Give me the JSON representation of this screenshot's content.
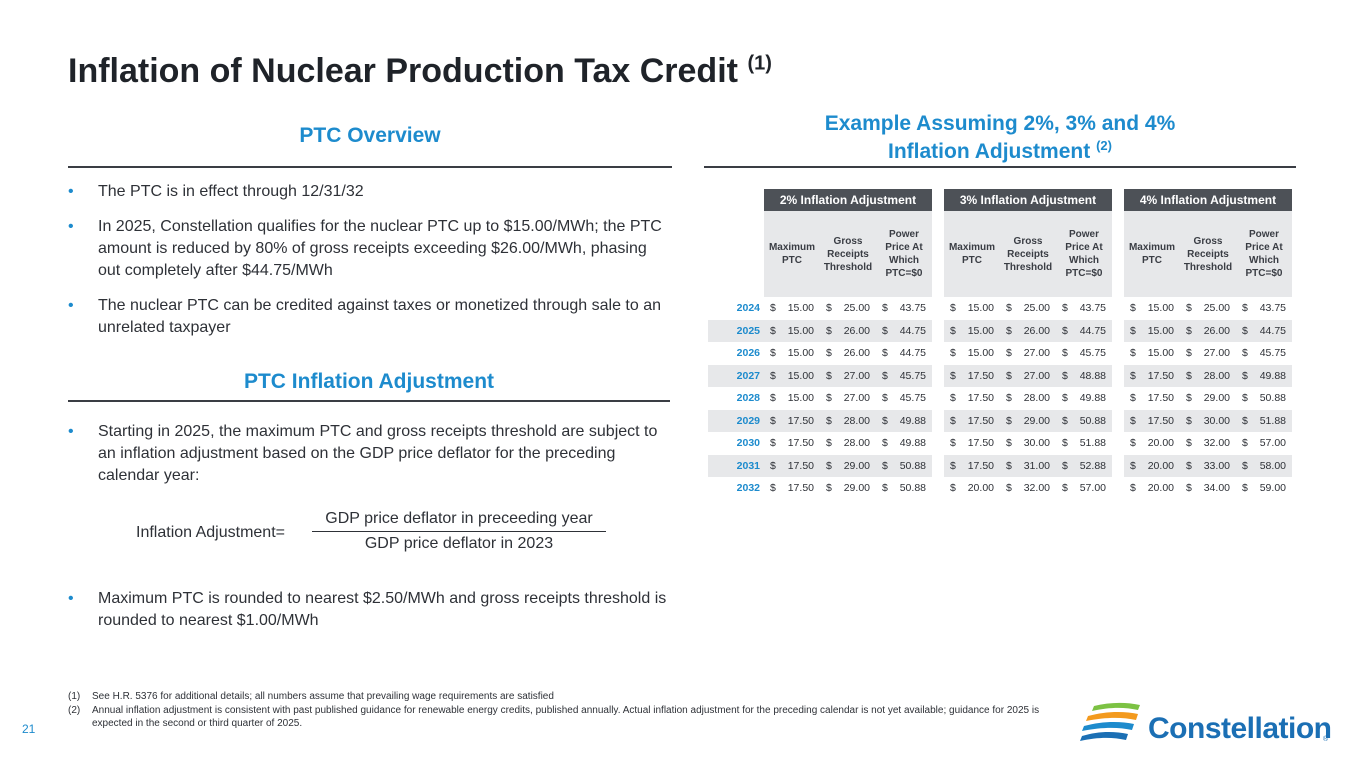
{
  "title": {
    "text": "Inflation of Nuclear Production Tax Credit",
    "sup": "(1)"
  },
  "overview": {
    "heading": "PTC Overview",
    "bullets": [
      "The PTC is in effect through 12/31/32",
      "In 2025, Constellation qualifies for the nuclear PTC up to $15.00/MWh; the PTC amount is reduced by 80% of gross receipts exceeding $26.00/MWh, phasing out completely after $44.75/MWh",
      "The nuclear PTC can be credited against taxes or monetized through sale to an unrelated taxpayer"
    ]
  },
  "inflation": {
    "heading": "PTC Inflation Adjustment",
    "bullet1": "Starting in 2025, the maximum PTC and gross receipts threshold are subject to an inflation adjustment based on the GDP price deflator for the preceding calendar year:",
    "bullet2": "Maximum PTC is rounded to nearest $2.50/MWh and gross receipts threshold is rounded to nearest $1.00/MWh",
    "equation": {
      "label": "Inflation Adjustment=",
      "numerator": "GDP price deflator in preceeding year",
      "denominator": "GDP price deflator in 2023"
    }
  },
  "example": {
    "heading_line1": "Example Assuming 2%, 3% and 4%",
    "heading_line2": "Inflation Adjustment",
    "heading_sup": "(2)"
  },
  "table": {
    "groups": [
      "2% Inflation Adjustment",
      "3% Inflation Adjustment",
      "4% Inflation Adjustment"
    ],
    "columns": [
      [
        "Maximum",
        "PTC"
      ],
      [
        "Gross",
        "Receipts",
        "Threshold"
      ],
      [
        "Power",
        "Price At",
        "Which",
        "PTC=$0"
      ]
    ],
    "currency": "$",
    "rows": [
      {
        "year": "2024",
        "values": [
          "15.00",
          "25.00",
          "43.75",
          "15.00",
          "25.00",
          "43.75",
          "15.00",
          "25.00",
          "43.75"
        ]
      },
      {
        "year": "2025",
        "values": [
          "15.00",
          "26.00",
          "44.75",
          "15.00",
          "26.00",
          "44.75",
          "15.00",
          "26.00",
          "44.75"
        ]
      },
      {
        "year": "2026",
        "values": [
          "15.00",
          "26.00",
          "44.75",
          "15.00",
          "27.00",
          "45.75",
          "15.00",
          "27.00",
          "45.75"
        ]
      },
      {
        "year": "2027",
        "values": [
          "15.00",
          "27.00",
          "45.75",
          "17.50",
          "27.00",
          "48.88",
          "17.50",
          "28.00",
          "49.88"
        ]
      },
      {
        "year": "2028",
        "values": [
          "15.00",
          "27.00",
          "45.75",
          "17.50",
          "28.00",
          "49.88",
          "17.50",
          "29.00",
          "50.88"
        ]
      },
      {
        "year": "2029",
        "values": [
          "17.50",
          "28.00",
          "49.88",
          "17.50",
          "29.00",
          "50.88",
          "17.50",
          "30.00",
          "51.88"
        ]
      },
      {
        "year": "2030",
        "values": [
          "17.50",
          "28.00",
          "49.88",
          "17.50",
          "30.00",
          "51.88",
          "20.00",
          "32.00",
          "57.00"
        ]
      },
      {
        "year": "2031",
        "values": [
          "17.50",
          "29.00",
          "50.88",
          "17.50",
          "31.00",
          "52.88",
          "20.00",
          "33.00",
          "58.00"
        ]
      },
      {
        "year": "2032",
        "values": [
          "17.50",
          "29.00",
          "50.88",
          "20.00",
          "32.00",
          "57.00",
          "20.00",
          "34.00",
          "59.00"
        ]
      }
    ]
  },
  "footnotes": [
    {
      "num": "(1)",
      "text": "See H.R. 5376 for additional details; all numbers assume that prevailing wage requirements are satisfied"
    },
    {
      "num": "(2)",
      "text": "Annual inflation adjustment is consistent with past published guidance for renewable energy credits, published annually. Actual inflation adjustment for the preceding calendar is not yet available; guidance for 2025 is expected in the second or third quarter of 2025."
    }
  ],
  "page_number": "21",
  "logo": {
    "text": "Constellation",
    "reg": "®"
  },
  "colors": {
    "accent": "#1d8bcd",
    "header_dark": "#4d5157",
    "row_shade": "#e7e8ea",
    "logo_blue": "#1b6fb4",
    "logo_green": "#7cc243",
    "logo_orange": "#f39a1e"
  }
}
